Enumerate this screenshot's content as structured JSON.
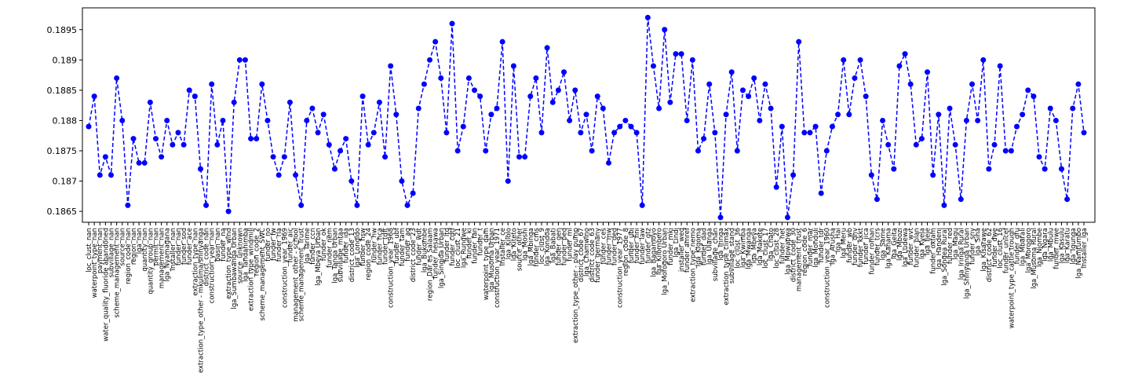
{
  "chart_data": {
    "type": "line",
    "categories": [
      "loc_clust_nan",
      "waterpoint_type_nan",
      "payment_nan",
      "water_quality_fluoride abandoned",
      "subvillage_nan",
      "scheme_management_nan",
      "source_nan",
      "region_code_nan",
      "region_nan",
      "lga_nan",
      "quantity_nan",
      "quantity_group_nan",
      "permit_nan",
      "management_nan",
      "lga_Nyamagana",
      "installer_nan",
      "funder_nan",
      "funder_sod",
      "funder_ace",
      "extraction_type_nan",
      "extraction_type_other - mkulima/shinyanga",
      "district_code_nan",
      "construction_year_nan",
      "basin_nan",
      "funder_na",
      "extraction_type_wind",
      "lga_Sumbawanga Urban",
      "source_unknown",
      "lga_Tandahimba",
      "extraction_type_windmill",
      "region_code_2",
      "scheme_management_SWC",
      "funder_no",
      "funder_fw",
      "funder_rla",
      "construction_year_1969",
      "funder_aic",
      "management_other - school",
      "scheme_management_Trust",
      "lga_Tarime",
      "funder_ccn",
      "lga_Mbeya Urban",
      "funder_ok",
      "funder_nem",
      "lga_Tanga Urban",
      "subvillage_mtaa",
      "funder_ida",
      "district_code_13",
      "lga_Longido",
      "funder_hsw",
      "region_code_24",
      "funder_hw",
      "funder_hca",
      "funder_tdft",
      "construction_year_1968",
      "funder_ubf",
      "funder_tam",
      "funder_aq",
      "district_code_23",
      "funder_wdt",
      "lga_Bukombe",
      "region_Dar es Salaam",
      "funder_hesawa",
      "lga_Singida Urban",
      "funder_ltd",
      "funder_cdtf",
      "loc_clust_21",
      "lga_Rungwe",
      "funder_ki",
      "funder_fan",
      "funder_t",
      "waterpoint_type_dam",
      "lga_Musoma Urban",
      "construction_year_1971",
      "installer_ce",
      "lga_Kilolo",
      "lga_Kiteto",
      "source_other",
      "lga_Moshi",
      "lga_Mbinga",
      "funder_cms",
      "loc_clust_9",
      "lga_Kondoa",
      "lga_Babati",
      "funder_gen",
      "funder_ped",
      "funder_ml",
      "extraction_type_other - play pump",
      "district_code_67",
      "lga_Chamwino",
      "district_code_63",
      "funder_germany",
      "funder_ces",
      "funder_mw",
      "funder_ded",
      "construction_year_1977",
      "region_code_8",
      "funder_ubi",
      "funder_fini",
      "funder_law",
      "funder_gtz",
      "lga_Bagamoyo",
      "lga_Kilombero",
      "lga_Morogoro Urban",
      "funder_mki",
      "lga_Lindi",
      "installer_wed",
      "funder_amref",
      "extraction_type_nemo",
      "lga_Kigoma",
      "funder_dad",
      "lga_Ulanga",
      "subvillage_chan",
      "lga_Iringa",
      "extraction_type_climax",
      "subvillage_stand",
      "loc_clust_36",
      "lga_Kwimba",
      "lga_Mwanga",
      "lga_Mbeya",
      "lga_Makete",
      "loc_clust_17",
      "lga_Chato",
      "loc_clust_28",
      "funder_net",
      "lga_Mpwapwa",
      "district_code_30",
      "management_trust",
      "region_code_6",
      "funder_mar",
      "lga_Monduli",
      "funder_tdr",
      "construction_year_1960",
      "lga_Arusha",
      "lga_Hai",
      "lga_Meru",
      "funder_wb",
      "funder_dhv",
      "funder_kkkt",
      "funder_jica",
      "funder_roman",
      "funder_tcrs",
      "lga_Same",
      "lga_Kahama",
      "lga_Geita",
      "lga_Mbozi",
      "lga_Ludewa",
      "funder_wvt",
      "funder_plan",
      "lga_Kyela",
      "lga_Ileje",
      "funder_oxfam",
      "lga_Handeni",
      "lga_Songea Rural",
      "funder_red",
      "lga_Magu",
      "lga_Iringa Rural",
      "lga_Shinyanga Urban",
      "funder_sny",
      "lga_Siha",
      "lga_Kisarawe",
      "district_code_62",
      "funder_dwe",
      "loc_clust_16",
      "funder_unicef",
      "waterpoint_type_cattle trough",
      "funder_gru",
      "lga_Mbarali",
      "lga_Morogoro",
      "lga_Musoma Rural",
      "lga_Njombe",
      "lga_Ngara",
      "lga_Mbulu",
      "funder_mwe",
      "lga_Kasulu",
      "lga_Karatu",
      "lga_Igunga",
      "lga_Namtumbo",
      "installer_lga"
    ],
    "values": [
      0.1879,
      0.1884,
      0.1871,
      0.1874,
      0.1871,
      0.1887,
      0.188,
      0.1866,
      0.1877,
      0.1873,
      0.1873,
      0.1883,
      0.1877,
      0.1874,
      0.188,
      0.1876,
      0.1878,
      0.1876,
      0.1885,
      0.1884,
      0.1872,
      0.1866,
      0.1886,
      0.1876,
      0.188,
      0.1865,
      0.1883,
      0.189,
      0.189,
      0.1877,
      0.1877,
      0.1886,
      0.188,
      0.1874,
      0.1871,
      0.1874,
      0.1883,
      0.1871,
      0.1866,
      0.188,
      0.1882,
      0.1878,
      0.1881,
      0.1876,
      0.1872,
      0.1875,
      0.1877,
      0.187,
      0.1866,
      0.1884,
      0.1876,
      0.1878,
      0.1883,
      0.1874,
      0.1889,
      0.1881,
      0.187,
      0.1866,
      0.1868,
      0.1882,
      0.1886,
      0.189,
      0.1893,
      0.1887,
      0.1878,
      0.1896,
      0.1875,
      0.1879,
      0.1887,
      0.1885,
      0.1884,
      0.1875,
      0.1881,
      0.1882,
      0.1893,
      0.187,
      0.1889,
      0.1874,
      0.1874,
      0.1884,
      0.1887,
      0.1878,
      0.1892,
      0.1883,
      0.1885,
      0.1888,
      0.188,
      0.1885,
      0.1878,
      0.1881,
      0.1875,
      0.1884,
      0.1882,
      0.1873,
      0.1878,
      0.1879,
      0.188,
      0.1879,
      0.1878,
      0.1866,
      0.1897,
      0.1889,
      0.1882,
      0.1895,
      0.1883,
      0.1891,
      0.1891,
      0.188,
      0.189,
      0.1875,
      0.1877,
      0.1886,
      0.1878,
      0.1864,
      0.1881,
      0.1888,
      0.1875,
      0.1885,
      0.1884,
      0.1887,
      0.188,
      0.1886,
      0.1882,
      0.1869,
      0.1879,
      0.1864,
      0.1871,
      0.1893,
      0.1878,
      0.1878,
      0.1879,
      0.1868,
      0.1875,
      0.1879,
      0.1881,
      0.189,
      0.1881,
      0.1887,
      0.189,
      0.1884,
      0.1871,
      0.1867,
      0.188,
      0.1876,
      0.1872,
      0.1889,
      0.1891,
      0.1886,
      0.1876,
      0.1877,
      0.1888,
      0.1871,
      0.1881,
      0.1866,
      0.1882,
      0.1876,
      0.1867,
      0.188,
      0.1886,
      0.188,
      0.189,
      0.1872,
      0.1876,
      0.1889,
      0.1875,
      0.1875,
      0.1879,
      0.1881,
      0.1885,
      0.1884,
      0.1874,
      0.1872,
      0.1882,
      0.188,
      0.1872,
      0.1867,
      0.1882,
      0.1886,
      0.1878
    ],
    "color": "#0000ff",
    "ylim": [
      0.18632,
      0.18986
    ],
    "yticks": [
      0.1865,
      0.187,
      0.1875,
      0.188,
      0.1885,
      0.189,
      0.1895
    ],
    "grid": false
  }
}
